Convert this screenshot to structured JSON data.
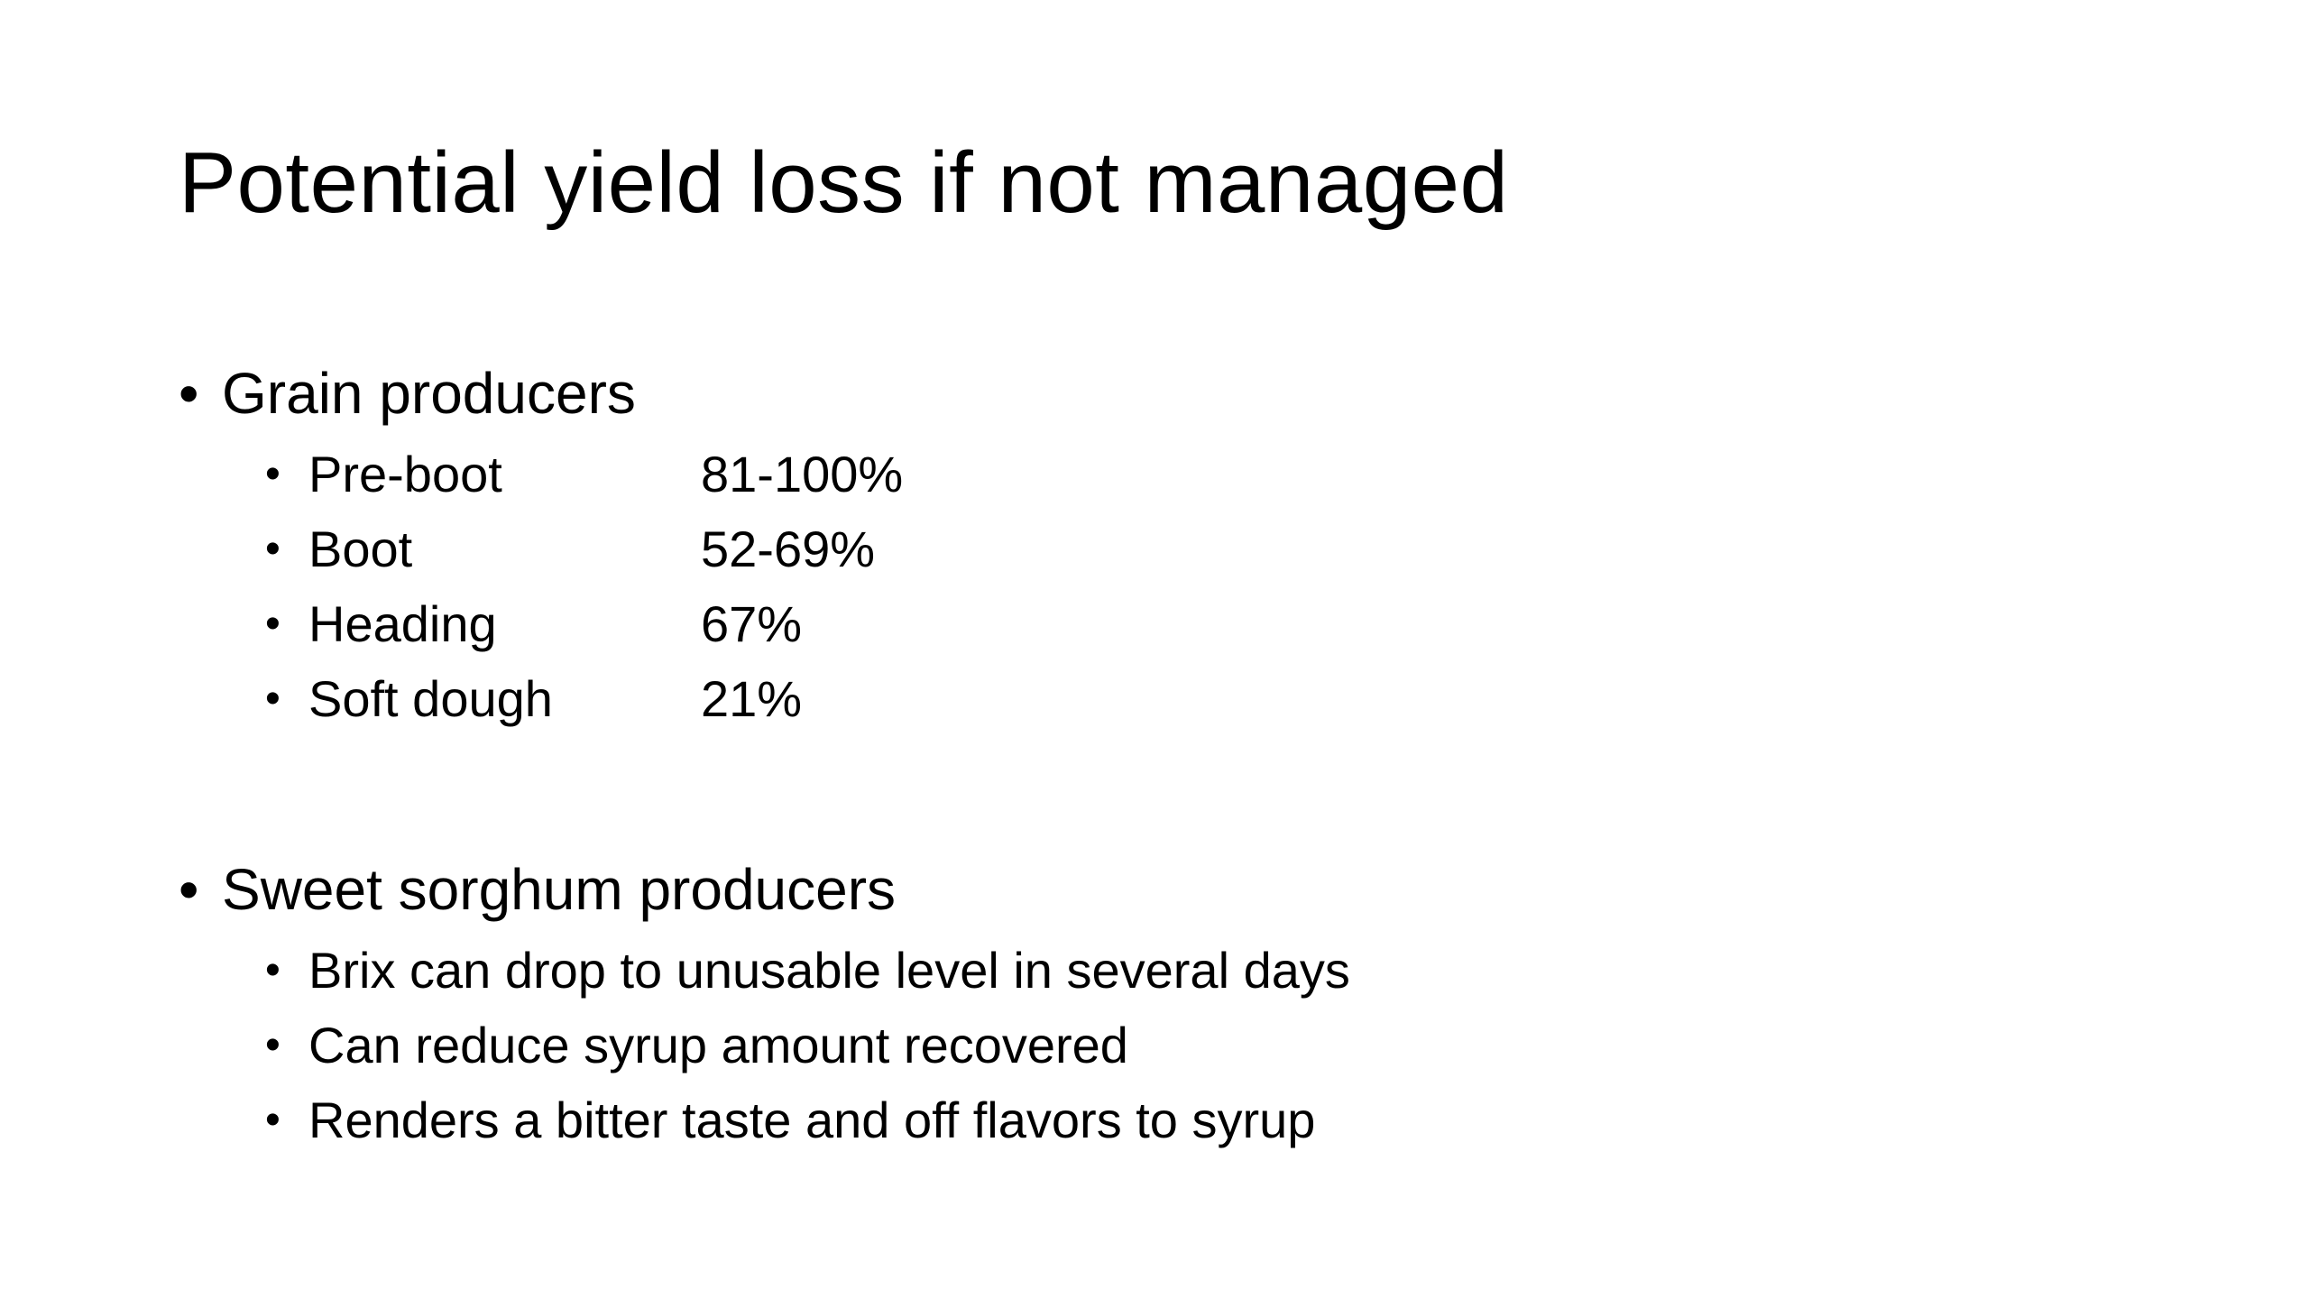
{
  "slide": {
    "title": "Potential yield loss if not managed",
    "bullet_glyph": "•",
    "sections": [
      {
        "heading": "Grain producers",
        "items": [
          {
            "label": "Pre-boot",
            "value": "81-100%"
          },
          {
            "label": "Boot",
            "value": "52-69%"
          },
          {
            "label": "Heading",
            "value": "67%"
          },
          {
            "label": "Soft dough",
            "value": "21%"
          }
        ]
      },
      {
        "heading": "Sweet sorghum producers",
        "items": [
          {
            "text": "Brix can drop to unusable level in several days"
          },
          {
            "text": "Can reduce syrup amount recovered"
          },
          {
            "text": "Renders a bitter taste and off flavors to syrup"
          }
        ]
      }
    ]
  }
}
